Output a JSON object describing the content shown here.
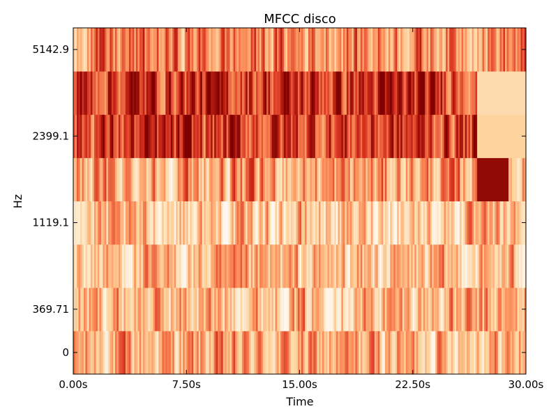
{
  "chart_data": {
    "type": "heatmap",
    "title": "MFCC disco",
    "xlabel": "Time",
    "ylabel": "Hz",
    "x_ticks": [
      "0.00s",
      "7.50s",
      "15.00s",
      "22.50s",
      "30.00s"
    ],
    "x_tick_values": [
      0,
      7.5,
      15,
      22.5,
      30
    ],
    "xlim": [
      0,
      30
    ],
    "y_ticks": [
      "0",
      "369.71",
      "1119.1",
      "2399.1",
      "5142.9"
    ],
    "num_coefficient_bands": 8,
    "grid": false,
    "legend": false,
    "colormap": "OrRd",
    "colormap_stops": [
      "#fff7ec",
      "#fdd49e",
      "#fc8d59",
      "#d7301f",
      "#7f0000"
    ],
    "band_mean_intensity": [
      0.38,
      0.36,
      0.3,
      0.28,
      0.42,
      0.72,
      0.76,
      0.52
    ]
  }
}
